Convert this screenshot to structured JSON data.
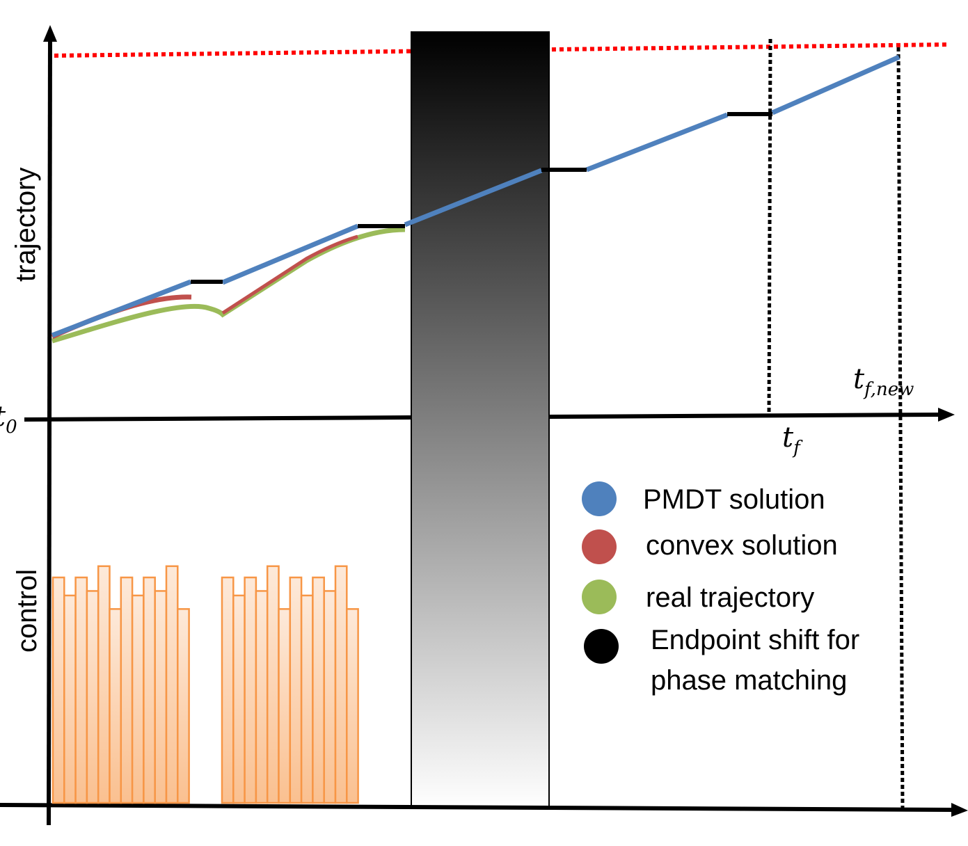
{
  "axes": {
    "upper_ylabel": "trajectory",
    "lower_ylabel": "control",
    "t0": {
      "base": "t",
      "sub": "0"
    },
    "tf": {
      "base": "t",
      "sub": "f"
    },
    "tf_new": {
      "base": "t",
      "sub": "f,new"
    }
  },
  "legend": [
    {
      "label": "PMDT solution",
      "color": "#4f81bd"
    },
    {
      "label": "convex solution",
      "color": "#c0504d"
    },
    {
      "label": "real trajectory",
      "color": "#9bbb59"
    },
    {
      "label": "Endpoint shift for",
      "label2": "phase matching",
      "color": "#000000"
    }
  ],
  "colors": {
    "bound_line": "#ff0000",
    "control_bar_stroke": "#f79646",
    "control_bar_fill_top": "#fde9d9",
    "control_bar_fill_bottom": "#fac090",
    "blackout_top": "#000000",
    "blackout_bottom": "#ffffff"
  },
  "control_levels": [
    1,
    0.92,
    1,
    0.94,
    1.05,
    0.86,
    1,
    0.92,
    1,
    0.94,
    1.05,
    0.86
  ]
}
